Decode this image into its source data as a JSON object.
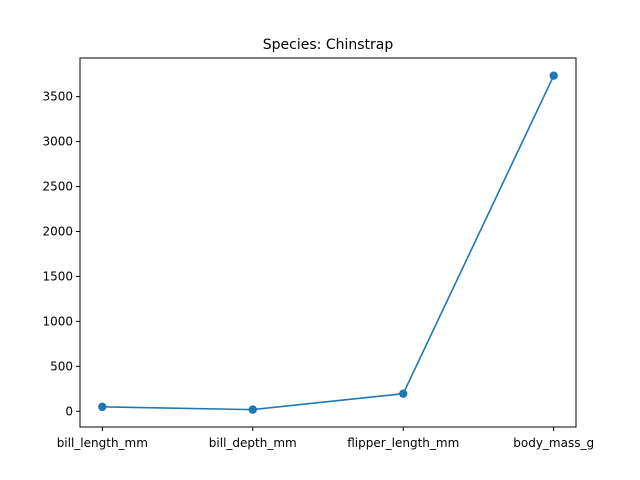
{
  "chart_data": {
    "type": "line",
    "title": "Species: Chinstrap",
    "xlabel": "",
    "ylabel": "",
    "categories": [
      "bill_length_mm",
      "bill_depth_mm",
      "flipper_length_mm",
      "body_mass_g"
    ],
    "series": [
      {
        "values": [
          48.8,
          18.4,
          195.8,
          3733.1
        ]
      }
    ],
    "ylim": [
      -175,
      3930
    ],
    "yticks": [
      0,
      500,
      1000,
      1500,
      2000,
      2500,
      3000,
      3500
    ],
    "grid": false,
    "legend": "none",
    "colors": {
      "line": "#1f77b4",
      "axes": "#000000"
    }
  }
}
